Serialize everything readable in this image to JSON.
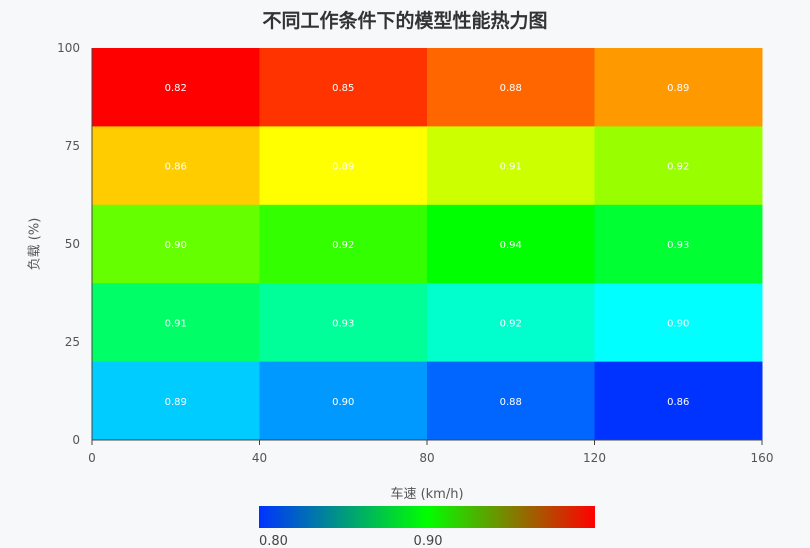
{
  "chart_data": {
    "type": "heatmap",
    "title": "不同工作条件下的模型性能热力图",
    "xlabel": "车速 (km/h)",
    "ylabel": "负载 (%)",
    "x_ticks": [
      0,
      40,
      80,
      120,
      160
    ],
    "y_ticks": [
      0,
      25,
      50,
      75,
      100
    ],
    "x_edges": [
      0,
      40,
      80,
      120,
      160
    ],
    "y_edges": [
      0,
      20,
      40,
      60,
      80,
      100
    ],
    "xlim": [
      0,
      160
    ],
    "ylim": [
      0,
      100
    ],
    "rows_top_to_bottom": [
      [
        0.82,
        0.85,
        0.88,
        0.89
      ],
      [
        0.86,
        0.89,
        0.91,
        0.92
      ],
      [
        0.9,
        0.92,
        0.94,
        0.93
      ],
      [
        0.91,
        0.93,
        0.92,
        0.9
      ],
      [
        0.89,
        0.9,
        0.88,
        0.86
      ]
    ],
    "colorscale": {
      "type": "rainbow",
      "stops": [
        "#0033ff",
        "#00ff00",
        "#ff0000"
      ],
      "tick_labels": [
        "0.80",
        "0.90"
      ]
    },
    "cell_colors_top_to_bottom": [
      [
        "#ff0000",
        "#ff3300",
        "#ff6600",
        "#ff9900"
      ],
      [
        "#ffcc00",
        "#ffff00",
        "#ccff00",
        "#99ff00"
      ],
      [
        "#66ff00",
        "#33ff00",
        "#00ff00",
        "#00ff33"
      ],
      [
        "#00ff66",
        "#00ff99",
        "#00ffcc",
        "#00ffff"
      ],
      [
        "#00ccff",
        "#0099ff",
        "#0066ff",
        "#0033ff"
      ]
    ],
    "grid": false,
    "legend": "bottom"
  }
}
